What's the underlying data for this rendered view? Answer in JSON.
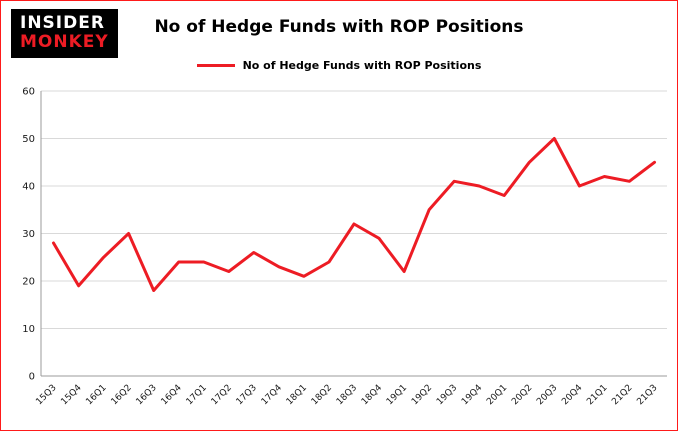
{
  "logo": {
    "line1": "INSIDER",
    "line2": "MONKEY"
  },
  "header": {
    "title": "No of Hedge Funds with ROP Positions"
  },
  "legend": {
    "label": "No of Hedge Funds with ROP Positions"
  },
  "colors": {
    "line": "#ed1c24",
    "grid": "#d9d9d9",
    "axis": "#9b9b9b",
    "tick_text": "#1a1a1a",
    "border": "#fe1a1a"
  },
  "chart_data": {
    "type": "line",
    "title": "No of Hedge Funds with ROP Positions",
    "xlabel": "",
    "ylabel": "",
    "ylim": [
      0,
      60
    ],
    "yticks": [
      0,
      10,
      20,
      30,
      40,
      50,
      60
    ],
    "grid": true,
    "legend_position": "top",
    "categories": [
      "15Q3",
      "15Q4",
      "16Q1",
      "16Q2",
      "16Q3",
      "16Q4",
      "17Q1",
      "17Q2",
      "17Q3",
      "17Q4",
      "18Q1",
      "18Q2",
      "18Q3",
      "18Q4",
      "19Q1",
      "19Q2",
      "19Q3",
      "19Q4",
      "20Q1",
      "20Q2",
      "20Q3",
      "20Q4",
      "21Q1",
      "21Q2",
      "21Q3"
    ],
    "series": [
      {
        "name": "No of Hedge Funds with ROP Positions",
        "values": [
          28,
          19,
          25,
          30,
          18,
          24,
          24,
          22,
          26,
          23,
          21,
          24,
          32,
          29,
          22,
          35,
          41,
          40,
          38,
          45,
          50,
          40,
          42,
          41,
          45
        ]
      }
    ]
  }
}
